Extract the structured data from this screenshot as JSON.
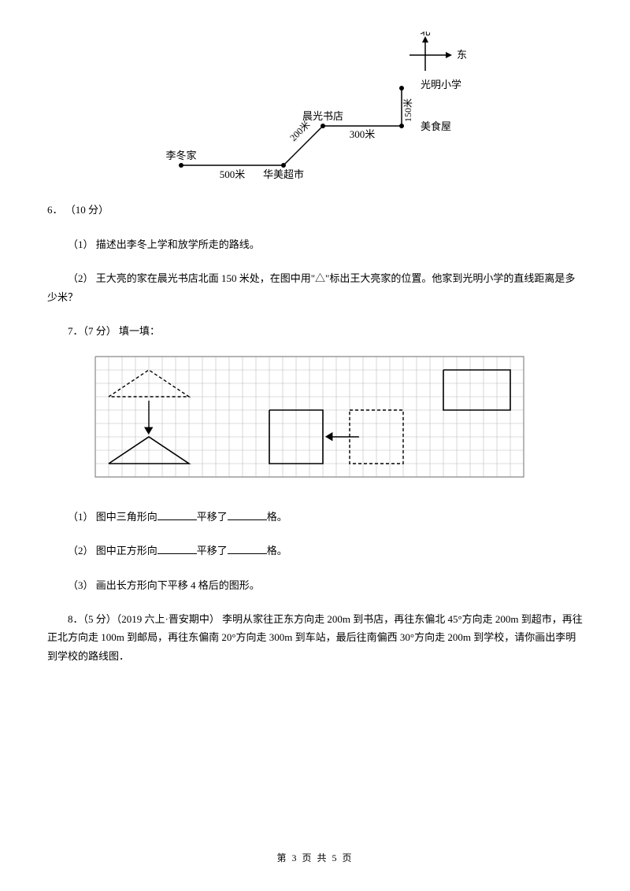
{
  "map": {
    "north": "北",
    "east": "东",
    "school": "光明小学",
    "bookstore": "晨光书店",
    "foodhouse": "美食屋",
    "lidong_home": "李冬家",
    "supermarket": "华美超市",
    "d500": "500米",
    "d200": "200米",
    "d300": "300米",
    "d150": "150米"
  },
  "q6": {
    "number": "6．",
    "points": "（10 分）",
    "sub1": "（1） 描述出李冬上学和放学所走的路线。",
    "sub2": "（2） 王大亮的家在晨光书店北面 150 米处，在图中用\"△\"标出王大亮家的位置。他家到光明小学的直线距离是多少米？"
  },
  "q7": {
    "header": "7．（7 分） 填一填：",
    "sub1_a": "（1） 图中三角形向",
    "sub1_b": "平移了",
    "sub1_c": "格。",
    "sub2_a": "（2） 图中正方形向",
    "sub2_b": "平移了",
    "sub2_c": "格。",
    "sub3": "（3） 画出长方形向下平移 4 格后的图形。"
  },
  "q8": {
    "text": "8．（5 分）（2019 六上·晋安期中） 李明从家往正东方向走 200m 到书店，再往东偏北 45°方向走 200m 到超市，再往正北方向走 100m 到邮局，再往东偏南 20°方向走 300m 到车站，最后往南偏西 30°方向走 200m 到学校，请你画出李明到学校的路线图．"
  },
  "footer": "第 3 页 共 5 页",
  "grid": {
    "cols": 32,
    "rows": 9,
    "cell": 17,
    "stroke": "#bcbcbc",
    "solid": "#000000",
    "dash": "4,3"
  }
}
